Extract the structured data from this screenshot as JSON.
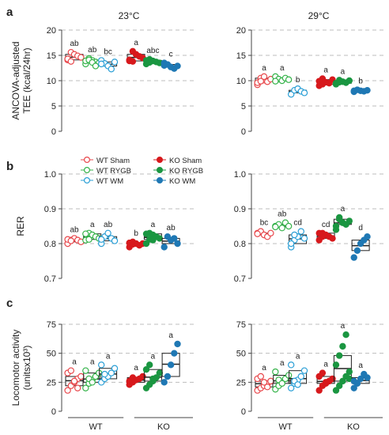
{
  "colors": {
    "WT Sham": "#e8474b",
    "WT RYGB": "#35b34a",
    "WT WM": "#2a9fd6",
    "KO Sham": "#d7191c",
    "KO RYGB": "#1a9641",
    "KO WM": "#1f78b4",
    "grid": "#bdbdbd",
    "box": "#222222"
  },
  "legend": {
    "items": [
      {
        "label": "WT Sham",
        "filled": false,
        "color": "#e8474b"
      },
      {
        "label": "KO Sham",
        "filled": true,
        "color": "#d7191c"
      },
      {
        "label": "WT RYGB",
        "filled": false,
        "color": "#35b34a"
      },
      {
        "label": "KO RYGB",
        "filled": true,
        "color": "#1a9641"
      },
      {
        "label": "WT WM",
        "filled": false,
        "color": "#2a9fd6"
      },
      {
        "label": "KO WM",
        "filled": true,
        "color": "#1f78b4"
      }
    ]
  },
  "chart_data": [
    {
      "type": "scatter",
      "panel": "a",
      "title": "23°C",
      "ylabel": "ANCOVA-adjusted TEE (kcal/24hr)",
      "ylim": [
        0,
        20
      ],
      "yticks": [
        0,
        5,
        10,
        15,
        20
      ],
      "grid": true,
      "groups": [
        {
          "name": "WT Sham",
          "letter": "ab",
          "values": [
            14.1,
            15.6,
            15.2,
            14.9,
            14.6,
            14.3,
            13.8
          ]
        },
        {
          "name": "WT RYGB",
          "letter": "ab",
          "values": [
            13.3,
            14.4,
            14.0,
            13.7,
            13.5,
            13.9,
            14.1,
            13.6,
            12.9
          ]
        },
        {
          "name": "WT WM",
          "letter": "bc",
          "values": [
            14.0,
            13.4,
            12.9,
            12.3,
            13.7,
            13.3
          ]
        },
        {
          "name": "KO Sham",
          "letter": "a",
          "values": [
            13.9,
            15.8,
            15.2,
            14.8,
            14.5,
            14.1,
            13.8
          ]
        },
        {
          "name": "KO RYGB",
          "letter": "abc",
          "values": [
            13.3,
            14.2,
            13.9,
            13.7,
            13.5,
            14.0,
            13.6
          ]
        },
        {
          "name": "KO WM",
          "letter": "c",
          "values": [
            13.5,
            13.2,
            12.7,
            12.4,
            12.9,
            13.0
          ]
        }
      ]
    },
    {
      "type": "scatter",
      "panel": "a",
      "title": "29°C",
      "ylim": [
        0,
        20
      ],
      "yticks": [
        0,
        5,
        10,
        15,
        20
      ],
      "grid": true,
      "groups": [
        {
          "name": "WT Sham",
          "letter": "a",
          "values": [
            9.2,
            10.5,
            10.1,
            9.8,
            10.3,
            9.6,
            9.9,
            10.8
          ]
        },
        {
          "name": "WT RYGB",
          "letter": "a",
          "values": [
            10.8,
            10.3,
            10.0,
            10.5,
            10.2,
            9.9
          ]
        },
        {
          "name": "WT WM",
          "letter": "b",
          "values": [
            7.3,
            8.1,
            8.4,
            7.9,
            7.6
          ]
        },
        {
          "name": "KO Sham",
          "letter": "a",
          "values": [
            9.0,
            10.4,
            9.7,
            9.5,
            10.2,
            9.9,
            9.3
          ]
        },
        {
          "name": "KO RYGB",
          "letter": "a",
          "values": [
            9.3,
            10.1,
            9.8,
            9.6,
            10.0,
            9.5,
            9.7
          ]
        },
        {
          "name": "KO WM",
          "letter": "b",
          "values": [
            7.8,
            8.2,
            8.0,
            7.9,
            8.1,
            8.0
          ]
        }
      ]
    },
    {
      "type": "scatter",
      "panel": "b",
      "ylabel": "RER",
      "ylim": [
        0.7,
        1.0
      ],
      "yticks": [
        "0.7",
        "0.8",
        "0.9",
        "1.0"
      ],
      "grid": true,
      "groups": [
        {
          "name": "WT Sham",
          "letter": "ab",
          "values": [
            0.8,
            0.81,
            0.815,
            0.81,
            0.805,
            0.812,
            0.808
          ]
        },
        {
          "name": "WT RYGB",
          "letter": "a",
          "values": [
            0.81,
            0.83,
            0.825,
            0.82,
            0.815,
            0.828,
            0.812
          ]
        },
        {
          "name": "WT WM",
          "letter": "ab",
          "values": [
            0.8,
            0.82,
            0.83,
            0.815,
            0.808,
            0.812
          ]
        },
        {
          "name": "KO Sham",
          "letter": "b",
          "values": [
            0.79,
            0.805,
            0.8,
            0.795,
            0.8,
            0.802,
            0.798
          ]
        },
        {
          "name": "KO RYGB",
          "letter": "a",
          "values": [
            0.8,
            0.83,
            0.825,
            0.82,
            0.815,
            0.828,
            0.812,
            0.81
          ]
        },
        {
          "name": "KO WM",
          "letter": "ab",
          "values": [
            0.79,
            0.82,
            0.81,
            0.815,
            0.8
          ]
        }
      ]
    },
    {
      "type": "scatter",
      "panel": "b",
      "ylim": [
        0.7,
        1.0
      ],
      "yticks": [
        "0.7",
        "0.8",
        "0.9",
        "1.0"
      ],
      "grid": true,
      "groups": [
        {
          "name": "WT Sham",
          "letter": "bc",
          "values": [
            0.83,
            0.835,
            0.825,
            0.82,
            0.83,
            0.828
          ]
        },
        {
          "name": "WT RYGB",
          "letter": "ab",
          "values": [
            0.85,
            0.855,
            0.845,
            0.86,
            0.85,
            0.848
          ]
        },
        {
          "name": "WT WM",
          "letter": "cd",
          "values": [
            0.79,
            0.81,
            0.82,
            0.835,
            0.815,
            0.8,
            0.825
          ]
        },
        {
          "name": "KO Sham",
          "letter": "cd",
          "values": [
            0.81,
            0.83,
            0.825,
            0.82,
            0.815,
            0.83,
            0.82
          ]
        },
        {
          "name": "KO RYGB",
          "letter": "a",
          "values": [
            0.84,
            0.87,
            0.86,
            0.855,
            0.865,
            0.85,
            0.875,
            0.86
          ]
        },
        {
          "name": "KO WM",
          "letter": "d",
          "values": [
            0.76,
            0.78,
            0.8,
            0.81,
            0.82
          ]
        }
      ]
    },
    {
      "type": "scatter",
      "panel": "c",
      "ylabel": "Locomotor activity (unitsx10³)",
      "ylim": [
        0,
        75
      ],
      "yticks": [
        0,
        25,
        50,
        75
      ],
      "grid": true,
      "groups": [
        {
          "name": "WT Sham",
          "letter": "a",
          "values": [
            18,
            22,
            25,
            28,
            30,
            33,
            35,
            26,
            20
          ]
        },
        {
          "name": "WT RYGB",
          "letter": "a",
          "values": [
            20,
            24,
            27,
            30,
            33,
            35,
            28,
            25
          ]
        },
        {
          "name": "WT WM",
          "letter": "a",
          "values": [
            25,
            28,
            30,
            33,
            37,
            40,
            32
          ]
        },
        {
          "name": "KO Sham",
          "letter": "a",
          "values": [
            23,
            25,
            27,
            28,
            30,
            26,
            29
          ]
        },
        {
          "name": "KO RYGB",
          "letter": "a",
          "values": [
            20,
            23,
            26,
            29,
            33,
            36,
            40,
            28
          ]
        },
        {
          "name": "KO WM",
          "letter": "a",
          "values": [
            25,
            30,
            40,
            50,
            58
          ]
        }
      ]
    },
    {
      "type": "scatter",
      "panel": "c",
      "ylim": [
        0,
        75
      ],
      "yticks": [
        0,
        25,
        50,
        75
      ],
      "grid": true,
      "groups": [
        {
          "name": "WT Sham",
          "letter": "a",
          "values": [
            18,
            20,
            22,
            24,
            26,
            28,
            30,
            25,
            21
          ]
        },
        {
          "name": "WT RYGB",
          "letter": "a",
          "values": [
            19,
            22,
            25,
            28,
            31,
            34,
            27,
            24
          ]
        },
        {
          "name": "WT WM",
          "letter": "a",
          "values": [
            20,
            24,
            27,
            30,
            35,
            40,
            26,
            23
          ]
        },
        {
          "name": "KO Sham",
          "letter": "a",
          "values": [
            18,
            22,
            24,
            26,
            28,
            30,
            33,
            25
          ]
        },
        {
          "name": "KO RYGB",
          "letter": "a",
          "values": [
            18,
            22,
            26,
            30,
            34,
            40,
            48,
            56,
            66,
            28
          ]
        },
        {
          "name": "KO WM",
          "letter": "a",
          "values": [
            20,
            24,
            28,
            32,
            29,
            26
          ]
        }
      ]
    }
  ],
  "panel_labels": {
    "a": "a",
    "b": "b",
    "c": "c"
  },
  "xaxis_groups": [
    {
      "label": "WT"
    },
    {
      "label": "KO"
    }
  ]
}
